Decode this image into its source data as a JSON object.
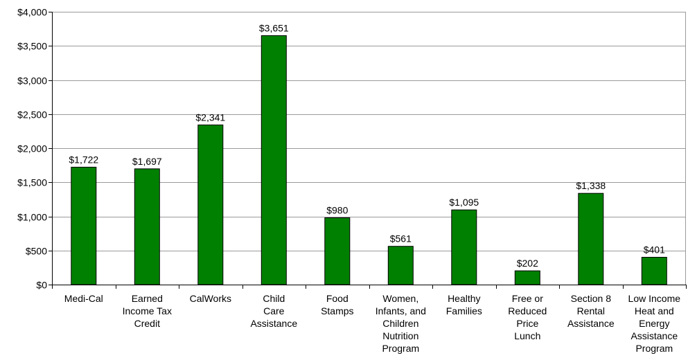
{
  "chart_data": {
    "type": "bar",
    "title": "",
    "xlabel": "",
    "ylabel": "",
    "ylim": [
      0,
      4000
    ],
    "yticks": [
      0,
      500,
      1000,
      1500,
      2000,
      2500,
      3000,
      3500,
      4000
    ],
    "ytick_labels": [
      "$0",
      "$500",
      "$1,000",
      "$1,500",
      "$2,000",
      "$2,500",
      "$3,000",
      "$3,500",
      "$4,000"
    ],
    "grid": true,
    "legend": "none",
    "bar_color": "#008000",
    "categories": [
      "Medi-Cal",
      "Earned Income Tax Credit",
      "CalWorks",
      "Child Care Assistance",
      "Food Stamps",
      "Women, Infants, and Children Nutrition Program",
      "Healthy Families",
      "Free or Reduced Price Lunch",
      "Section 8 Rental Assistance",
      "Low Income Heat and Energy Assistance Program"
    ],
    "category_lines": [
      [
        "Medi-Cal"
      ],
      [
        "Earned",
        "Income Tax",
        "Credit"
      ],
      [
        "CalWorks"
      ],
      [
        "Child",
        "Care",
        "Assistance"
      ],
      [
        "Food",
        "Stamps"
      ],
      [
        "Women,",
        "Infants, and",
        "Children",
        "Nutrition",
        "Program"
      ],
      [
        "Healthy",
        "Families"
      ],
      [
        "Free or",
        "Reduced",
        "Price",
        "Lunch"
      ],
      [
        "Section 8",
        "Rental",
        "Assistance"
      ],
      [
        "Low Income",
        "Heat and",
        "Energy",
        "Assistance",
        "Program"
      ]
    ],
    "values": [
      1722,
      1697,
      2341,
      3651,
      980,
      561,
      1095,
      202,
      1338,
      401
    ],
    "data_labels": [
      "$1,722",
      "$1,697",
      "$2,341",
      "$3,651",
      "$980",
      "$561",
      "$1,095",
      "$202",
      "$1,338",
      "$401"
    ]
  }
}
